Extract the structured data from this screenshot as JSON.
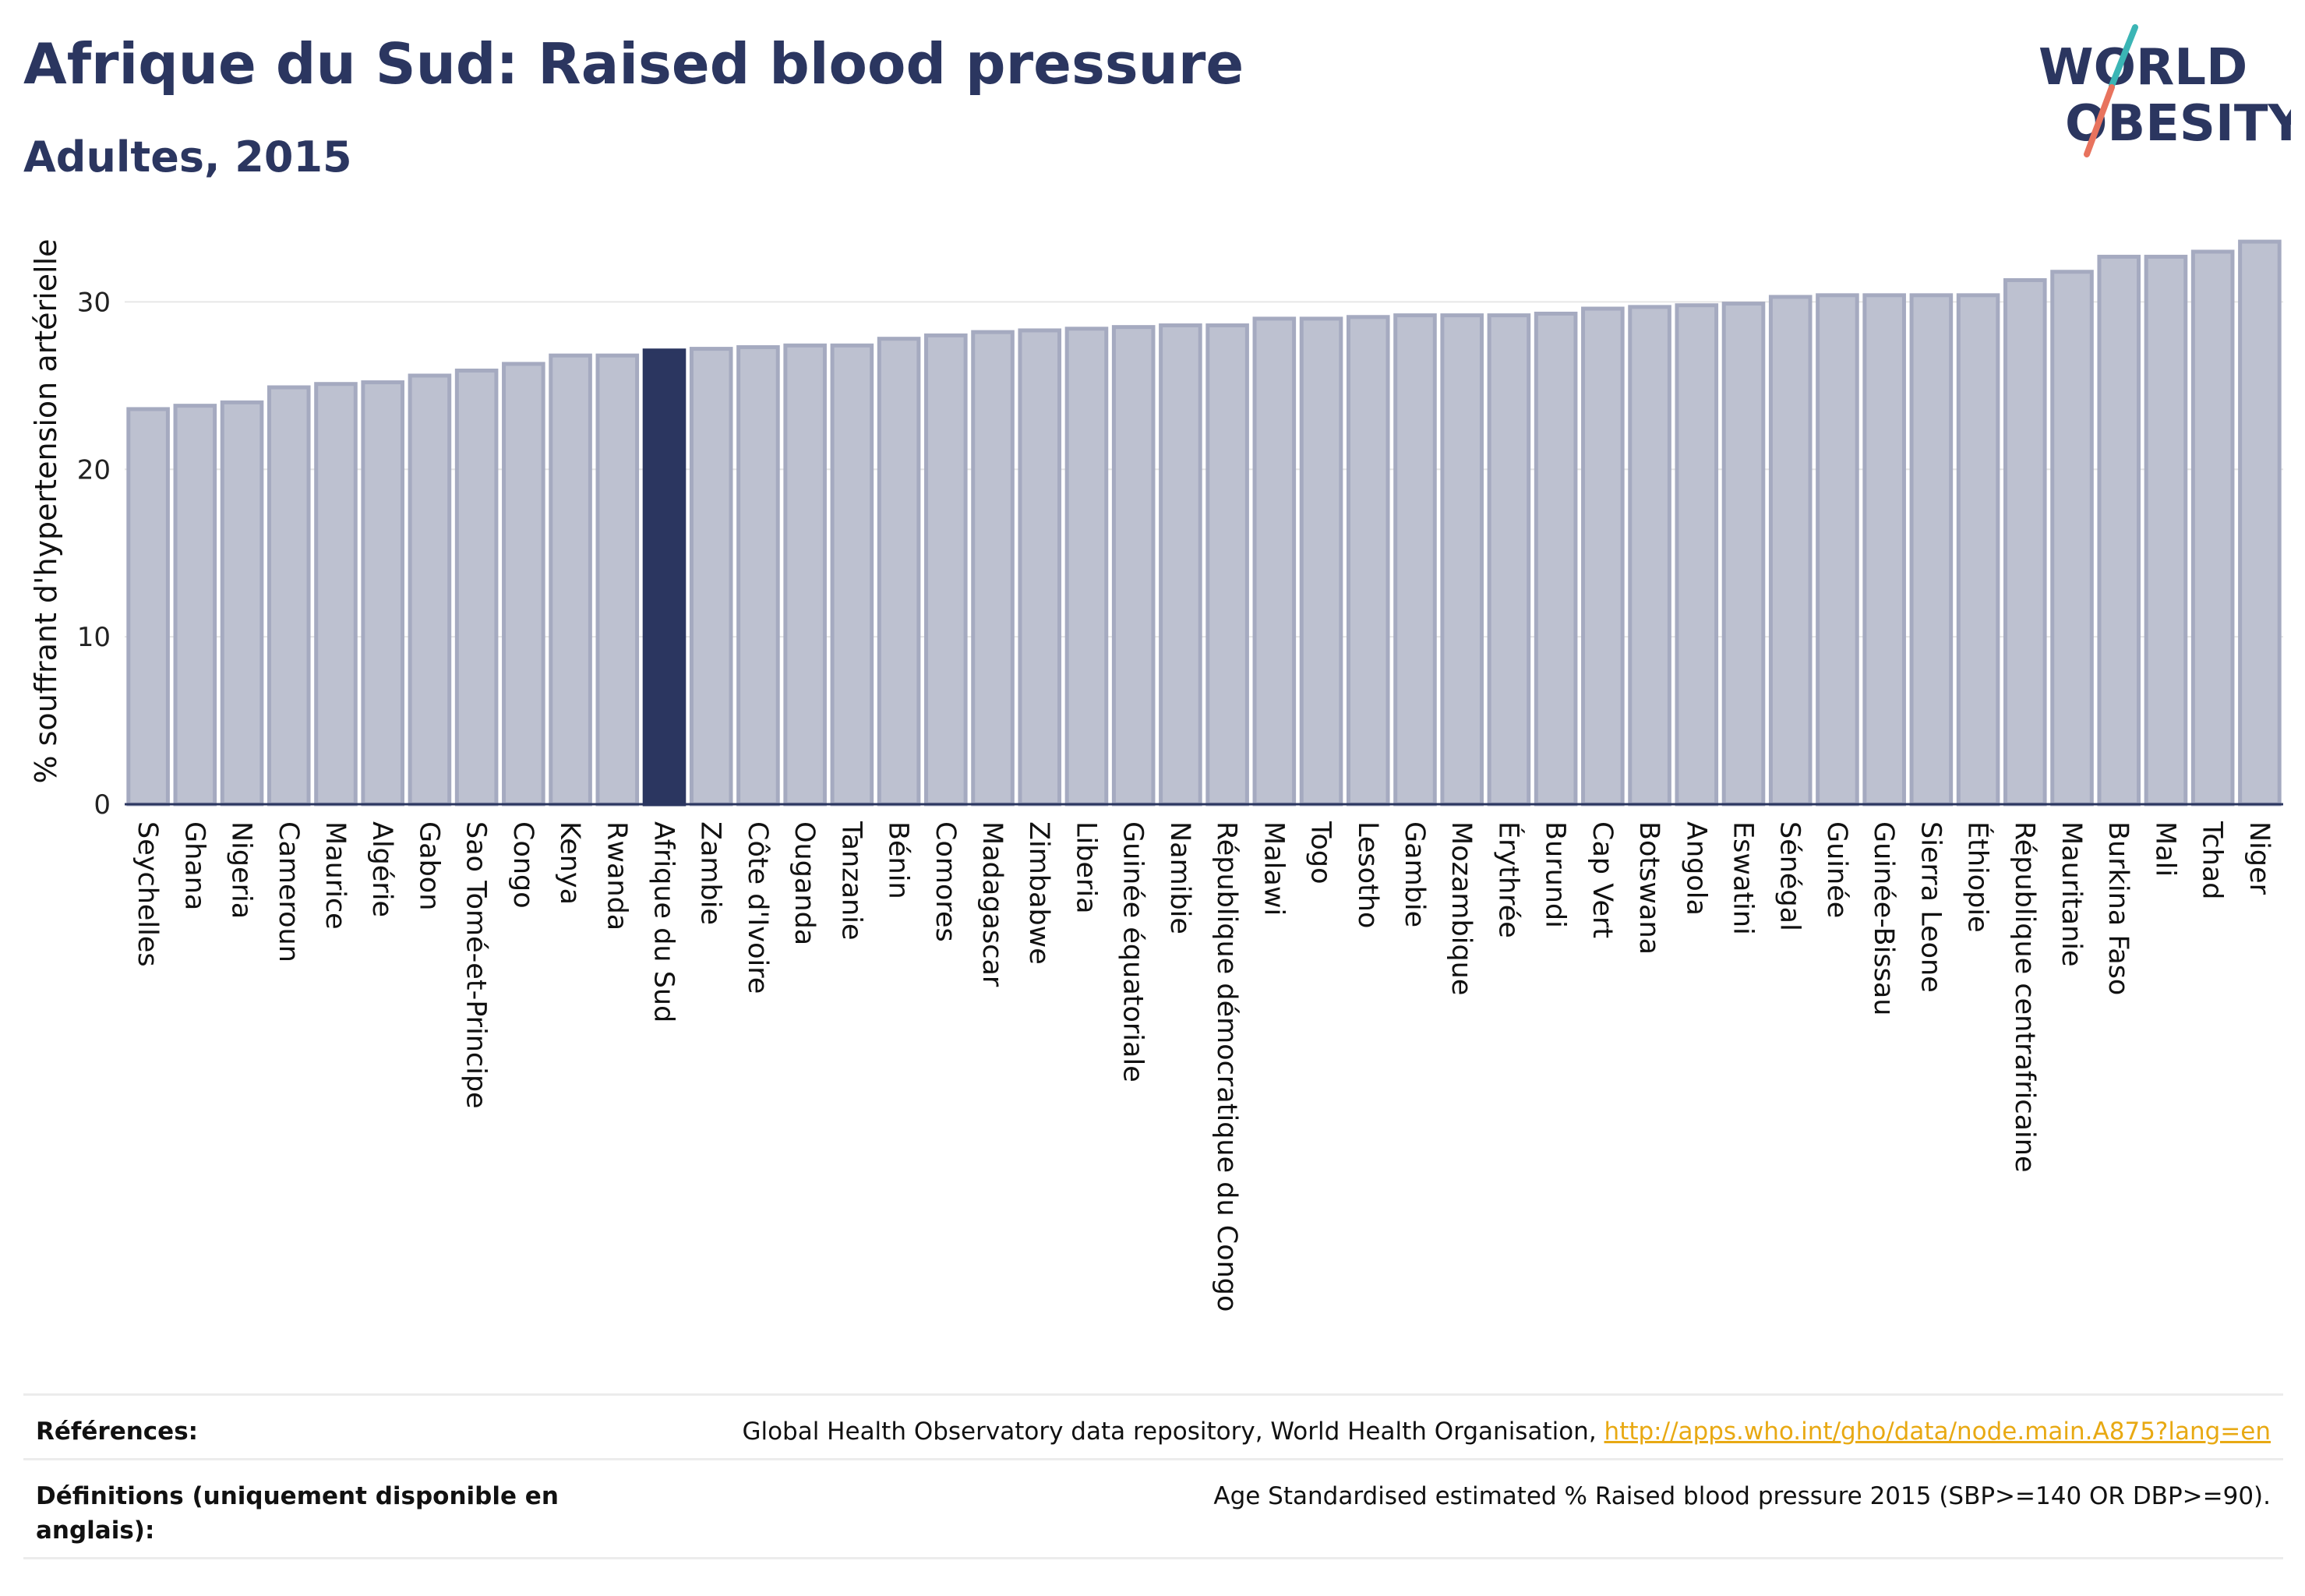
{
  "header": {
    "title": "Afrique du Sud: Raised blood pressure",
    "subtitle": "Adultes, 2015"
  },
  "logo": {
    "text_line1": "WORLD",
    "text_line2": "OBESITY"
  },
  "colors": {
    "bar": "#bdc1d0",
    "bar_edge": "#a5aac0",
    "highlight": "#2b3660",
    "text": "#2b3660",
    "link": "#e8a913",
    "logo_teal": "#3bb5b5",
    "logo_coral": "#e8735e"
  },
  "chart_data": {
    "type": "bar",
    "ylabel": "% souffrant d'hypertension artérielle",
    "xlabel": "",
    "ylim": [
      0,
      35
    ],
    "yticks": [
      0,
      10,
      20,
      30
    ],
    "grid": true,
    "highlight": "Afrique du Sud",
    "categories": [
      "Seychelles",
      "Ghana",
      "Nigeria",
      "Cameroun",
      "Maurice",
      "Algérie",
      "Gabon",
      "Sao Tomé-et-Principe",
      "Congo",
      "Kenya",
      "Rwanda",
      "Afrique du Sud",
      "Zambie",
      "Côte d'Ivoire",
      "Ouganda",
      "Tanzanie",
      "Bénin",
      "Comores",
      "Madagascar",
      "Zimbabwe",
      "Liberia",
      "Guinée équatoriale",
      "Namibie",
      "République démocratique du Congo",
      "Malawi",
      "Togo",
      "Lesotho",
      "Gambie",
      "Mozambique",
      "Érythrée",
      "Burundi",
      "Cap Vert",
      "Botswana",
      "Angola",
      "Eswatini",
      "Sénégal",
      "Guinée",
      "Guinée-Bissau",
      "Sierra Leone",
      "Éthiopie",
      "République centrafricaine",
      "Mauritanie",
      "Burkina Faso",
      "Mali",
      "Tchad",
      "Niger"
    ],
    "values": [
      23.6,
      23.8,
      24.0,
      24.9,
      25.1,
      25.2,
      25.6,
      25.9,
      26.3,
      26.8,
      26.8,
      27.1,
      27.2,
      27.3,
      27.4,
      27.4,
      27.8,
      28.0,
      28.2,
      28.3,
      28.4,
      28.5,
      28.6,
      28.6,
      29.0,
      29.0,
      29.1,
      29.2,
      29.2,
      29.2,
      29.3,
      29.6,
      29.7,
      29.8,
      29.9,
      30.3,
      30.4,
      30.4,
      30.4,
      30.4,
      31.3,
      31.8,
      32.7,
      32.7,
      33.0,
      33.6
    ]
  },
  "footer": {
    "references_label": "Références:",
    "references_text": "Global Health Observatory data repository, World Health Organisation,",
    "references_link": "http://apps.who.int/gho/data/node.main.A875?lang=en",
    "definitions_label": "Définitions (uniquement disponible en anglais):",
    "definitions_text": "Age Standardised estimated % Raised blood pressure 2015 (SBP>=140 OR DBP>=90)."
  }
}
